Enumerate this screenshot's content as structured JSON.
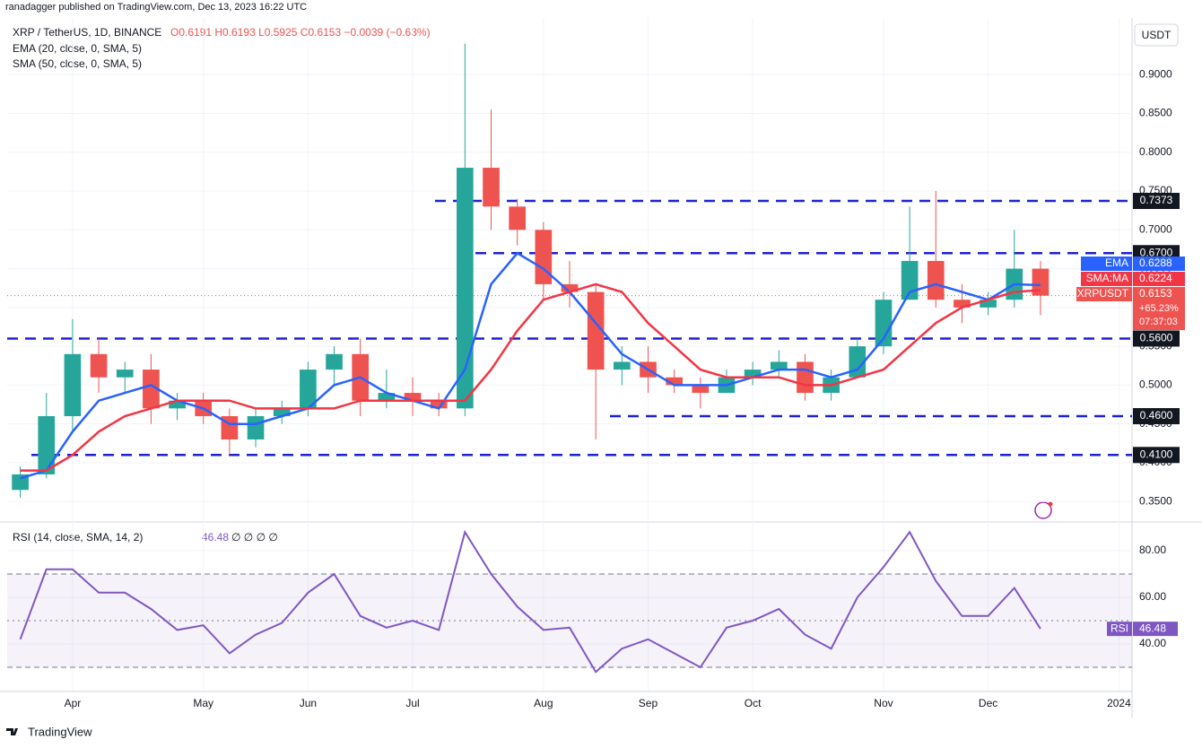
{
  "header": {
    "publisher": "ranadagger published on TradingView.com, Dec 13, 2023 16:22 UTC",
    "brand": "TradingView"
  },
  "chart_data": [
    {
      "type": "candlestick",
      "title": "XRP / TetherUS, 1D, BINANCE",
      "ohlc_text": "O0.6191 H0.6193 L0.5925 C0.6153 −0.0039 (−0.63%)",
      "currency": "USDT",
      "categories": [
        null,
        null,
        "Apr",
        null,
        null,
        null,
        null,
        "May",
        null,
        null,
        null,
        "Jun",
        null,
        null,
        null,
        "Jul",
        null,
        null,
        null,
        null,
        "Aug",
        null,
        null,
        null,
        "Sep",
        null,
        null,
        null,
        "Oct",
        null,
        null,
        null,
        null,
        "Nov",
        null,
        null,
        null,
        "Dec",
        null,
        null,
        null,
        null,
        "2024"
      ],
      "open": [
        0.365,
        0.385,
        0.46,
        0.54,
        0.51,
        0.52,
        0.47,
        0.48,
        0.46,
        0.43,
        0.46,
        0.47,
        0.52,
        0.54,
        0.48,
        0.49,
        0.48,
        0.47,
        0.78,
        0.73,
        0.7,
        0.63,
        0.62,
        0.52,
        0.53,
        0.51,
        0.5,
        0.49,
        0.51,
        0.52,
        0.53,
        0.49,
        0.51,
        0.55,
        0.61,
        0.66,
        0.61,
        0.6,
        0.61,
        0.65,
        null,
        null,
        null
      ],
      "high": [
        0.395,
        0.49,
        0.585,
        0.56,
        0.53,
        0.54,
        0.49,
        0.49,
        0.47,
        0.47,
        0.48,
        0.53,
        0.55,
        0.56,
        0.52,
        0.51,
        0.49,
        0.94,
        0.855,
        0.74,
        0.71,
        0.66,
        0.63,
        0.55,
        0.55,
        0.52,
        0.51,
        0.52,
        0.53,
        0.545,
        0.54,
        0.52,
        0.56,
        0.62,
        0.73,
        0.75,
        0.63,
        0.62,
        0.7,
        0.66,
        null,
        null,
        null
      ],
      "low": [
        0.355,
        0.38,
        0.44,
        0.49,
        0.49,
        0.45,
        0.455,
        0.45,
        0.41,
        0.42,
        0.45,
        0.46,
        0.5,
        0.46,
        0.47,
        0.46,
        0.46,
        0.46,
        0.7,
        0.68,
        0.61,
        0.6,
        0.43,
        0.5,
        0.49,
        0.49,
        0.47,
        0.49,
        0.5,
        0.51,
        0.48,
        0.48,
        0.51,
        0.54,
        0.61,
        0.6,
        0.58,
        0.59,
        0.6,
        0.59,
        null,
        null,
        null
      ],
      "close": [
        0.385,
        0.46,
        0.54,
        0.51,
        0.52,
        0.47,
        0.48,
        0.46,
        0.43,
        0.46,
        0.47,
        0.52,
        0.54,
        0.48,
        0.49,
        0.48,
        0.47,
        0.78,
        0.73,
        0.7,
        0.63,
        0.62,
        0.52,
        0.53,
        0.51,
        0.5,
        0.49,
        0.51,
        0.52,
        0.53,
        0.49,
        0.51,
        0.55,
        0.61,
        0.66,
        0.61,
        0.6,
        0.61,
        0.65,
        0.6153,
        null,
        null,
        null
      ],
      "up_color": "#26a69a",
      "down_color": "#ef5350",
      "last_label": "XRPUSDT",
      "change_label": "+65.23%",
      "countdown": "07:37:03",
      "series": [
        {
          "name": "EMA",
          "legend": "EMA (20, close, 0, SMA, 5)",
          "color": "#2962ff",
          "values": [
            0.38,
            0.39,
            0.44,
            0.48,
            0.49,
            0.5,
            0.48,
            0.47,
            0.45,
            0.45,
            0.46,
            0.47,
            0.5,
            0.51,
            0.49,
            0.48,
            0.47,
            0.52,
            0.63,
            0.67,
            0.65,
            0.62,
            0.58,
            0.54,
            0.52,
            0.5,
            0.5,
            0.5,
            0.51,
            0.52,
            0.52,
            0.51,
            0.52,
            0.56,
            0.62,
            0.63,
            0.62,
            0.61,
            0.63,
            0.6288,
            null,
            null,
            null
          ]
        },
        {
          "name": "SMA:MA",
          "legend": "SMA (50, close, 0, SMA, 5)",
          "color": "#f23645",
          "values": [
            0.39,
            0.39,
            0.41,
            0.44,
            0.46,
            0.47,
            0.48,
            0.48,
            0.48,
            0.47,
            0.47,
            0.47,
            0.47,
            0.48,
            0.48,
            0.48,
            0.48,
            0.48,
            0.52,
            0.57,
            0.61,
            0.62,
            0.63,
            0.62,
            0.58,
            0.55,
            0.52,
            0.51,
            0.51,
            0.51,
            0.5,
            0.5,
            0.51,
            0.52,
            0.55,
            0.58,
            0.6,
            0.61,
            0.62,
            0.6224,
            null,
            null,
            null
          ]
        }
      ],
      "levels": [
        {
          "value": 0.7373,
          "label": "0.7373"
        },
        {
          "value": 0.67,
          "label": "0.6700"
        },
        {
          "value": 0.56,
          "label": "0.5600"
        },
        {
          "value": 0.46,
          "label": "0.4600"
        },
        {
          "value": 0.41,
          "label": "0.4100"
        }
      ],
      "ylim": [
        0.326,
        0.973
      ],
      "yticks": [
        {
          "value": 0.35,
          "label": "0.3500"
        },
        {
          "value": 0.4,
          "label": "0.4000"
        },
        {
          "value": 0.45,
          "label": "0.4500"
        },
        {
          "value": 0.5,
          "label": "0.5000"
        },
        {
          "value": 0.55,
          "label": "0.5500"
        },
        {
          "value": 0.6,
          "label": "0.6000"
        },
        {
          "value": 0.65,
          "label": "0.6500"
        },
        {
          "value": 0.7,
          "label": "0.7000"
        },
        {
          "value": 0.75,
          "label": "0.7500"
        },
        {
          "value": 0.8,
          "label": "0.8000"
        },
        {
          "value": 0.85,
          "label": "0.8500"
        },
        {
          "value": 0.9,
          "label": "0.9000"
        }
      ],
      "grid": true
    },
    {
      "type": "line",
      "title": "RSI (14, close, SMA, 14, 2)",
      "title_extra": "∅ ∅ ∅ ∅",
      "series": [
        {
          "name": "RSI",
          "color": "#7e57c2",
          "values": [
            42,
            72,
            72,
            62,
            62,
            55,
            46,
            48,
            36,
            44,
            49,
            62,
            70,
            52,
            47,
            50,
            46,
            88,
            70,
            56,
            46,
            47,
            28,
            38,
            42,
            36,
            30,
            47,
            50,
            55,
            44,
            38,
            60,
            73,
            88,
            67,
            52,
            52,
            64,
            46.48,
            null,
            null,
            null
          ]
        }
      ],
      "guides": [
        70,
        50,
        30
      ],
      "ylim": [
        20,
        91.15
      ],
      "yticks": [
        {
          "value": 40,
          "label": "40.00"
        },
        {
          "value": 60,
          "label": "60.00"
        },
        {
          "value": 80,
          "label": "80.00"
        }
      ],
      "grid": true
    }
  ]
}
